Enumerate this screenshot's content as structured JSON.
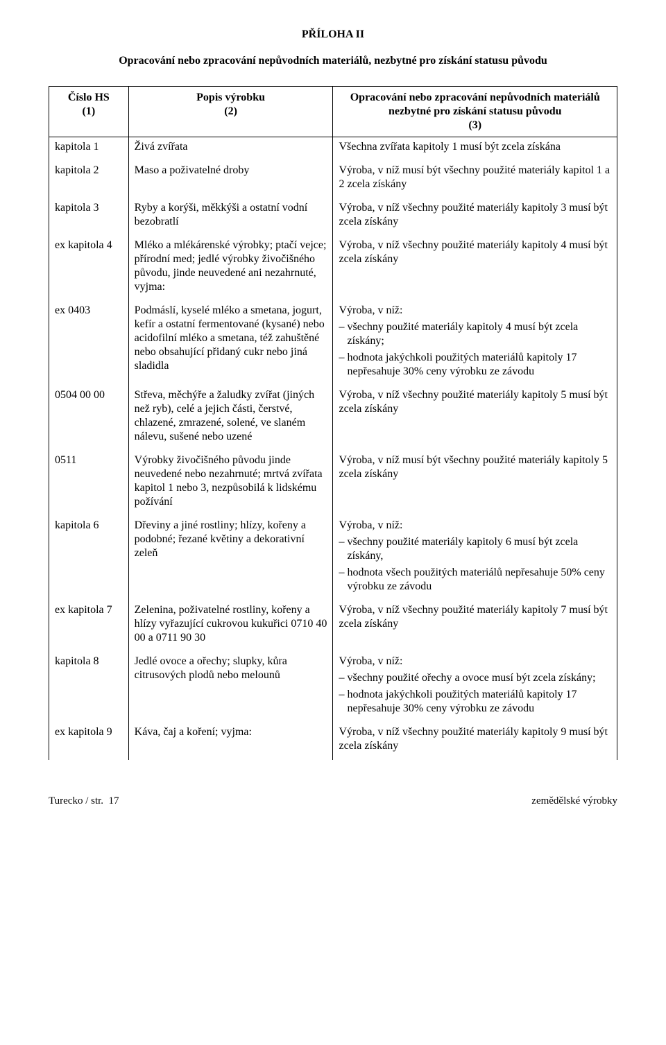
{
  "title_main": "PŘÍLOHA II",
  "title_sub": "Opracování nebo zpracování nepůvodních materiálů, nezbytné pro získání statusu původu",
  "header": {
    "col1_label": "Číslo HS",
    "col2_label": "Popis výrobku",
    "col3_label": "Opracování nebo zpracování nepůvodních materiálů nezbytné pro získání statusu původu",
    "col1_num": "(1)",
    "col2_num": "(2)",
    "col3_num": "(3)"
  },
  "rows": [
    {
      "c1": "kapitola 1",
      "c2": "Živá zvířata",
      "c3_text": "Všechna zvířata kapitoly 1 musí být zcela získána"
    },
    {
      "c1": "kapitola 2",
      "c2": "Maso a poživatelné droby",
      "c3_text": "Výroba, v níž musí být všechny použité materiály kapitol 1 a 2 zcela získány"
    },
    {
      "c1": "kapitola 3",
      "c2": "Ryby a korýši, měkkýši a ostatní vodní bezobratlí",
      "c3_text": "Výroba, v níž všechny použité materiály kapitoly 3 musí být zcela získány"
    },
    {
      "c1": "ex kapitola 4",
      "c2": "Mléko a mlékárenské výrobky; ptačí vejce; přírodní med; jedlé výrobky živočišného původu, jinde neuvedené ani nezahrnuté, vyjma:",
      "c3_text": "Výroba, v níž všechny použité materiály kapitoly 4 musí být zcela získány"
    },
    {
      "c1": "ex 0403",
      "c2": "Podmáslí, kyselé mléko a smetana, jogurt, kefír a ostatní fermentované (kysané) nebo acidofilní mléko a smetana, též zahuštěné nebo obsahující přidaný cukr nebo jiná sladidla",
      "c3_lead": "Výroba, v níž:",
      "c3_bullets": [
        "všechny použité materiály kapitoly 4 musí být zcela získány;",
        "hodnota jakýchkoli použitých materiálů kapitoly 17 nepřesahuje 30% ceny výrobku ze závodu"
      ]
    },
    {
      "c1": "0504 00 00",
      "c2": "Střeva, měchýře a žaludky zvířat (jiných než ryb), celé a jejich části, čerstvé, chlazené, zmrazené, solené, ve slaném nálevu, sušené nebo uzené",
      "c3_text": "Výroba, v níž všechny použité materiály kapitoly 5 musí být zcela získány"
    },
    {
      "c1": "0511",
      "c2": "Výrobky živočišného původu jinde neuvedené nebo nezahrnuté; mrtvá zvířata kapitol 1 nebo 3, nezpůsobilá k lidskému požívání",
      "c3_text": "Výroba, v níž musí být všechny použité materiály kapitoly 5 zcela získány"
    },
    {
      "c1": "kapitola 6",
      "c2": "Dřeviny a jiné rostliny; hlízy, kořeny a podobné; řezané květiny a dekorativní zeleň",
      "c3_lead": "Výroba, v níž:",
      "c3_bullets": [
        "všechny použité materiály kapitoly 6 musí být zcela získány,",
        "hodnota všech použitých materiálů nepřesahuje 50% ceny výrobku ze závodu"
      ]
    },
    {
      "c1": "ex kapitola 7",
      "c2": "Zelenina, poživatelné rostliny, kořeny a hlízy vyřazující cukrovou kukuřici 0710 40 00 a 0711 90 30",
      "c3_text": "Výroba, v níž všechny použité materiály kapitoly 7 musí být zcela získány"
    },
    {
      "c1": "kapitola 8",
      "c2": "Jedlé ovoce a ořechy; slupky, kůra citrusových plodů nebo melounů",
      "c3_lead": "Výroba, v níž:",
      "c3_bullets": [
        "všechny použité ořechy a ovoce musí být zcela získány;",
        "hodnota jakýchkoli použitých materiálů kapitoly 17 nepřesahuje 30% ceny výrobku ze závodu"
      ]
    },
    {
      "c1": "ex kapitola 9",
      "c2": "Káva, čaj a koření; vyjma:",
      "c3_text": "Výroba, v níž všechny použité materiály kapitoly 9 musí být zcela získány"
    }
  ],
  "footer": {
    "left": "Turecko / str.  17",
    "right": "zemědělské výrobky"
  },
  "colors": {
    "text": "#000000",
    "background": "#ffffff",
    "border": "#000000"
  }
}
